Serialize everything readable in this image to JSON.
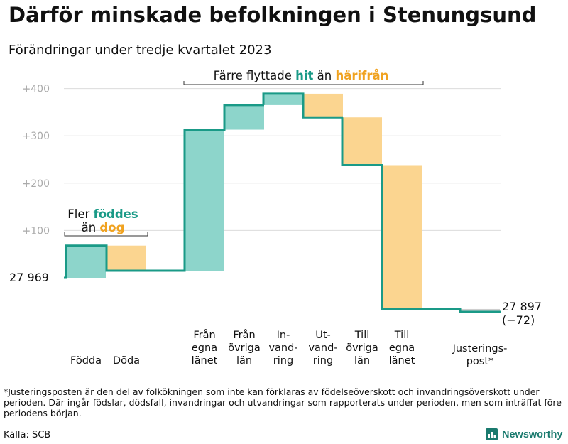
{
  "title": "Därför minskade befolkningen i Stenungsund",
  "subtitle": "Förändringar under tredje kvartalet 2023",
  "chart_data": {
    "type": "waterfall",
    "start_label": "27  969",
    "start_value": 27969,
    "end_labels": [
      "27 897",
      "(−72)"
    ],
    "end_value": 27897,
    "y_ticks": [
      100,
      200,
      300,
      400
    ],
    "y_tick_labels": [
      "+100",
      "+200",
      "+300",
      "+400"
    ],
    "ylim": [
      -90,
      420
    ],
    "steps": [
      {
        "name": "fodda",
        "label": [
          "Födda"
        ],
        "from": 0,
        "to": 68,
        "kind": "inflow"
      },
      {
        "name": "doda",
        "label": [
          "Döda"
        ],
        "from": 68,
        "to": 15,
        "kind": "outflow"
      },
      {
        "name": "fran-egna-lanet",
        "label": [
          "Från",
          "egna",
          "länet"
        ],
        "from": 15,
        "to": 313,
        "kind": "inflow"
      },
      {
        "name": "fran-ovriga-lan",
        "label": [
          "Från",
          "övriga",
          "län"
        ],
        "from": 313,
        "to": 365,
        "kind": "inflow"
      },
      {
        "name": "invandring",
        "label": [
          "In-",
          "vand-",
          "ring"
        ],
        "from": 365,
        "to": 389,
        "kind": "inflow"
      },
      {
        "name": "utvandring",
        "label": [
          "Ut-",
          "vand-",
          "ring"
        ],
        "from": 389,
        "to": 339,
        "kind": "outflow"
      },
      {
        "name": "till-ovriga-lan",
        "label": [
          "Till",
          "övriga",
          "län"
        ],
        "from": 339,
        "to": 238,
        "kind": "outflow"
      },
      {
        "name": "till-egna-lanet",
        "label": [
          "Till",
          "egna",
          "länet"
        ],
        "from": 238,
        "to": -66,
        "kind": "outflow"
      },
      {
        "name": "justeringspost",
        "label": [
          "Justerings-",
          "post*"
        ],
        "from": -66,
        "to": -72,
        "kind": "adjustment"
      }
    ],
    "annotations": {
      "births": {
        "prefix": "Fler ",
        "highlight1": "föddes",
        "middle": "än ",
        "highlight2": "dog"
      },
      "moves": {
        "prefix": "Färre flyttade ",
        "highlight1": "hit",
        "middle": " än ",
        "highlight2": "härifrån"
      }
    },
    "colors": {
      "inflow": "#8dd5cb",
      "outflow": "#fbd590",
      "adjustment": "#cfcfcf",
      "line": "#1a9a87",
      "teal_text": "#1a9a87",
      "orange_text": "#f0a21f",
      "grid": "#dcdcdc",
      "tick_text": "#aaaaaa"
    }
  },
  "footnote": "*Justeringsposten är den del av folkökningen som inte kan förklaras av födelseöverskott och invandringsöverskott under perioden. Där ingår födslar, dödsfall, invandringar och utvandringar som rapporterats under perioden, men som inträffat före periodens början.",
  "source": "Källa: SCB",
  "logo": {
    "name": "Newsworthy",
    "color": "#1a7a6e"
  }
}
